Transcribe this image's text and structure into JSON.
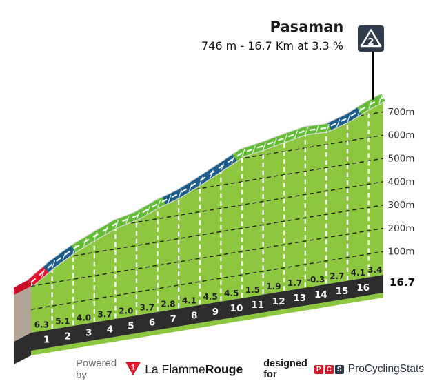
{
  "header": {
    "title": "Pasaman",
    "subtitle": "746 m - 16.7 Km at 3.3 %",
    "category_badge": "2"
  },
  "chart_data": {
    "type": "area",
    "title": "Pasaman",
    "subtitle": "746 m - 16.7 Km at 3.3 %",
    "summit_name": "Pasaman",
    "summit_elevation_m": 746,
    "length_km": 16.7,
    "avg_gradient_pct": 3.3,
    "category": "2",
    "x_km": [
      0,
      1,
      2,
      3,
      4,
      5,
      6,
      7,
      8,
      9,
      10,
      11,
      12,
      13,
      14,
      15,
      16,
      16.7
    ],
    "elevation_m": [
      200,
      263,
      314,
      354,
      391,
      411,
      448,
      476,
      517,
      562,
      607,
      622,
      641,
      658,
      655,
      682,
      723,
      746
    ],
    "per_km_gradient_pct": [
      6.3,
      5.1,
      4.0,
      3.7,
      2.0,
      3.7,
      2.8,
      4.1,
      4.5,
      4.5,
      1.5,
      1.9,
      1.7,
      -0.3,
      2.7,
      4.1,
      3.4
    ],
    "gradient_labels": [
      "6.3",
      "5.1",
      "4.0",
      "3.7",
      "2.0",
      "3.7",
      "2.8",
      "4.1",
      "4.5",
      "4.5",
      "1.5",
      "1.9",
      "1.7",
      "-0.3",
      "2.7",
      "4.1",
      "3.4"
    ],
    "km_tick_labels": [
      "1",
      "2",
      "3",
      "4",
      "5",
      "6",
      "7",
      "8",
      "9",
      "10",
      "11",
      "12",
      "13",
      "14",
      "15",
      "16"
    ],
    "end_distance_label": "16.7",
    "y_gridlines": [
      {
        "elevation_m": 700,
        "label": "700m"
      },
      {
        "elevation_m": 600,
        "label": "600m"
      },
      {
        "elevation_m": 500,
        "label": "500m"
      },
      {
        "elevation_m": 400,
        "label": "400m"
      },
      {
        "elevation_m": 300,
        "label": "300m"
      },
      {
        "elevation_m": 200,
        "label": "200m"
      },
      {
        "elevation_m": 100,
        "label": "100m"
      }
    ],
    "ylim": [
      0,
      746
    ],
    "xlim": [
      0,
      16.7
    ],
    "road_segments": [
      {
        "from_km": 0.0,
        "to_km": 0.7,
        "color_key": "road_red"
      },
      {
        "from_km": 0.7,
        "to_km": 2.0,
        "color_key": "road_blue"
      },
      {
        "from_km": 2.0,
        "to_km": 6.3,
        "color_key": "road_green"
      },
      {
        "from_km": 6.3,
        "to_km": 9.65,
        "color_key": "road_blue"
      },
      {
        "from_km": 9.65,
        "to_km": 14.15,
        "color_key": "road_green"
      },
      {
        "from_km": 14.15,
        "to_km": 15.55,
        "color_key": "road_blue"
      },
      {
        "from_km": 15.55,
        "to_km": 16.7,
        "color_key": "road_green"
      }
    ],
    "colors": {
      "body": "#8dc63f",
      "road_green": "#62bd35",
      "road_blue": "#1c5d8e",
      "road_red": "#e8122d",
      "road_red_side": "#c60f26",
      "road_outline": "#d9d9d9",
      "band": "#2d2d2d",
      "side_face": "#b3a596",
      "grid": "#222222",
      "km_line": "#ffffff",
      "marker_line": "#000000",
      "badge_bg": "#2e3c4b"
    }
  },
  "footer": {
    "powered_by": "Powered by",
    "lfr_badge": "1",
    "lfr_name_regular": "La Flamme",
    "lfr_name_bold": "Rouge",
    "designed_for": "designed for",
    "pcs_letters": [
      "P",
      "C",
      "S"
    ],
    "pcs_name": "ProCyclingStats"
  }
}
